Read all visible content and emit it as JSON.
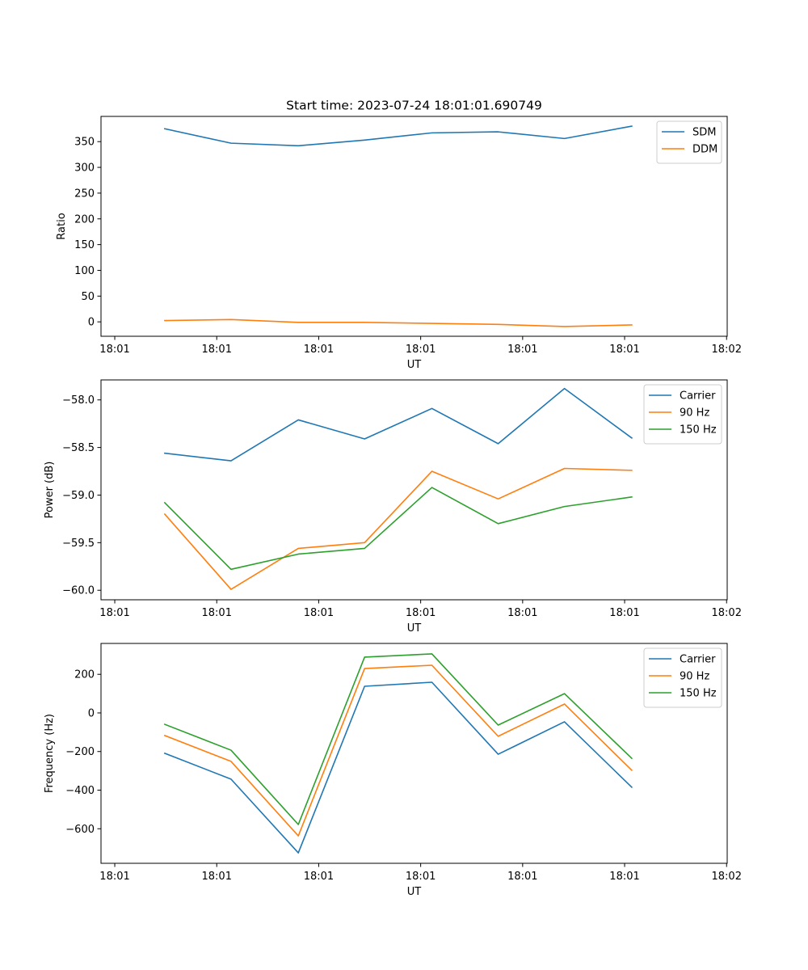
{
  "figure_title": "Start time: 2023-07-24 18:01:01.690749",
  "chart_data": [
    {
      "type": "line",
      "title": "Start time: 2023-07-24 18:01:01.690749",
      "xlabel": "UT",
      "ylabel": "Ratio",
      "x_tick_labels": [
        "18:01",
        "18:01",
        "18:01",
        "18:01",
        "18:01",
        "18:01",
        "18:02"
      ],
      "x": [
        0.49,
        1.14,
        1.8,
        2.45,
        3.11,
        3.76,
        4.41,
        5.07
      ],
      "xlim": [
        -0.135,
        6.006
      ],
      "ylim": [
        -28,
        399
      ],
      "y_ticks": [
        0,
        50,
        100,
        150,
        200,
        250,
        300,
        350
      ],
      "y_tick_labels": [
        "0",
        "50",
        "100",
        "150",
        "200",
        "250",
        "300",
        "350"
      ],
      "grid": false,
      "legend_position": "top-right",
      "series": [
        {
          "name": "SDM",
          "color": "#1f77b4",
          "values": [
            375,
            347,
            342,
            353,
            367,
            369,
            356,
            380
          ]
        },
        {
          "name": "DDM",
          "color": "#ff7f0e",
          "values": [
            2.5,
            4.5,
            -1,
            -1,
            -3,
            -5,
            -9,
            -6
          ]
        }
      ]
    },
    {
      "type": "line",
      "title": "",
      "xlabel": "UT",
      "ylabel": "Power (dB)",
      "x_tick_labels": [
        "18:01",
        "18:01",
        "18:01",
        "18:01",
        "18:01",
        "18:01",
        "18:02"
      ],
      "x": [
        0.49,
        1.14,
        1.8,
        2.45,
        3.11,
        3.76,
        4.41,
        5.07
      ],
      "xlim": [
        -0.135,
        6.006
      ],
      "ylim": [
        -60.1,
        -57.79
      ],
      "y_ticks": [
        -60.0,
        -59.5,
        -59.0,
        -58.5,
        -58.0
      ],
      "y_tick_labels": [
        "−60.0",
        "−59.5",
        "−59.0",
        "−58.5",
        "−58.0"
      ],
      "grid": false,
      "legend_position": "top-right",
      "series": [
        {
          "name": "Carrier",
          "color": "#1f77b4",
          "values": [
            -58.56,
            -58.64,
            -58.21,
            -58.41,
            -58.09,
            -58.46,
            -57.88,
            -58.4
          ]
        },
        {
          "name": "90 Hz",
          "color": "#ff7f0e",
          "values": [
            -59.2,
            -59.99,
            -59.56,
            -59.5,
            -58.75,
            -59.04,
            -58.72,
            -58.74
          ]
        },
        {
          "name": "150 Hz",
          "color": "#2ca02c",
          "values": [
            -59.08,
            -59.78,
            -59.62,
            -59.56,
            -58.92,
            -59.3,
            -59.12,
            -59.02
          ]
        }
      ]
    },
    {
      "type": "line",
      "title": "",
      "xlabel": "UT",
      "ylabel": "Frequency (Hz)",
      "x_tick_labels": [
        "18:01",
        "18:01",
        "18:01",
        "18:01",
        "18:01",
        "18:01",
        "18:02"
      ],
      "x": [
        0.49,
        1.14,
        1.8,
        2.45,
        3.11,
        3.76,
        4.41,
        5.07
      ],
      "xlim": [
        -0.135,
        6.006
      ],
      "ylim": [
        -779,
        360
      ],
      "y_ticks": [
        -600,
        -400,
        -200,
        0,
        200
      ],
      "y_tick_labels": [
        "−600",
        "−400",
        "−200",
        "0",
        "200"
      ],
      "grid": false,
      "legend_position": "top-right",
      "series": [
        {
          "name": "Carrier",
          "color": "#1f77b4",
          "values": [
            -209,
            -343,
            -725,
            138,
            159,
            -214,
            -46,
            -385
          ]
        },
        {
          "name": "90 Hz",
          "color": "#ff7f0e",
          "values": [
            -117,
            -251,
            -637,
            230,
            247,
            -121,
            46,
            -297
          ]
        },
        {
          "name": "150 Hz",
          "color": "#2ca02c",
          "values": [
            -59,
            -193,
            -578,
            289,
            306,
            -63,
            100,
            -235
          ]
        }
      ]
    }
  ]
}
